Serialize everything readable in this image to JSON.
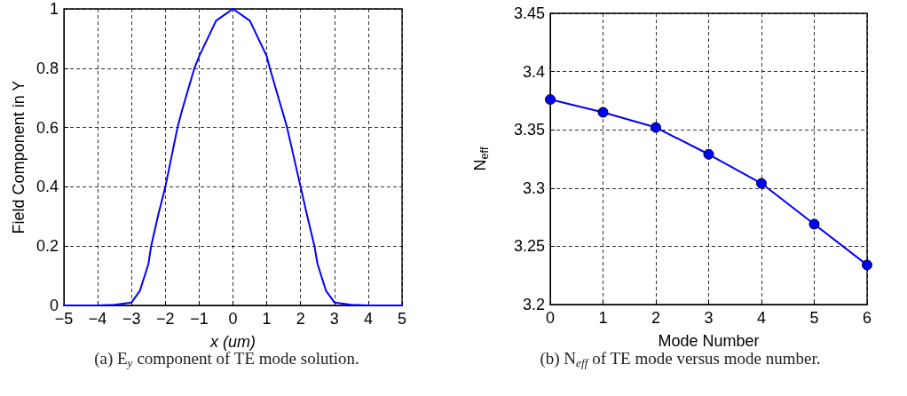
{
  "chart_data": [
    {
      "type": "line",
      "xlabel": "x (um)",
      "ylabel": "Field Component in Y",
      "annotations": [
        "(a) E$_{y}$ component of TE mode solution."
      ],
      "series": [
        {
          "color": "#0000ff",
          "x": [
            -5,
            -4,
            -3.5,
            -3,
            -2.75,
            -2.5,
            -2.42,
            -2.2,
            -2,
            -1.64,
            -1.5,
            -1.14,
            -1,
            -0.5,
            0,
            0.5,
            1,
            1.09,
            1.5,
            1.6,
            2,
            2.2,
            2.41,
            2.5,
            2.75,
            3,
            3.5,
            4,
            5
          ],
          "values": [
            0,
            0,
            0.002,
            0.01,
            0.05,
            0.14,
            0.2,
            0.31,
            0.4,
            0.6,
            0.66,
            0.8,
            0.84,
            0.96,
            1,
            0.96,
            0.84,
            0.8,
            0.64,
            0.6,
            0.4,
            0.3,
            0.2,
            0.14,
            0.05,
            0.01,
            0.002,
            0,
            0
          ]
        }
      ],
      "xlim": [
        -5,
        5
      ],
      "xticks": [
        -5,
        -4,
        -3,
        -2,
        -1,
        0,
        1,
        2,
        3,
        4,
        5
      ],
      "ylim": [
        0,
        1
      ],
      "yticks": [
        0,
        0.2,
        0.4,
        0.6,
        0.8,
        1
      ],
      "grid": true,
      "marker": "none",
      "line_style": "solid"
    },
    {
      "type": "line",
      "xlabel": "Mode Number",
      "ylabel": "N$_{eff}$",
      "annotations": [
        "(b) N$_{eff}$ of TE mode versus mode number."
      ],
      "series": [
        {
          "color": "#0000ff",
          "x": [
            0,
            1,
            2,
            3,
            4,
            5,
            6
          ],
          "values": [
            3.376,
            3.365,
            3.352,
            3.329,
            3.304,
            3.269,
            3.234
          ]
        }
      ],
      "xlim": [
        0,
        6
      ],
      "xticks": [
        0,
        1,
        2,
        3,
        4,
        5,
        6
      ],
      "ylim": [
        3.2,
        3.45
      ],
      "yticks": [
        3.2,
        3.25,
        3.3,
        3.35,
        3.4,
        3.45
      ],
      "grid": true,
      "marker": "circle",
      "line_style": "solid"
    }
  ]
}
